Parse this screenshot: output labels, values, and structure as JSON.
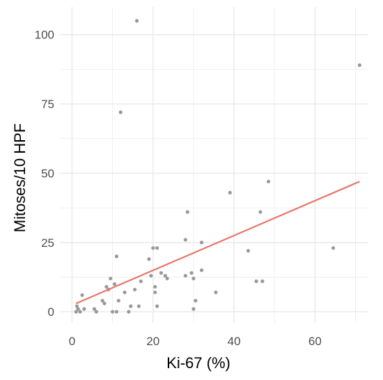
{
  "chart_data": {
    "type": "scatter",
    "xlabel": "Ki-67 (%)",
    "ylabel": "Mitoses/10 HPF",
    "xlim": [
      -3,
      73
    ],
    "ylim": [
      -4,
      110
    ],
    "x_ticks": [
      0,
      20,
      40,
      60
    ],
    "y_ticks": [
      0,
      25,
      50,
      75,
      100
    ],
    "x_tick_labels": [
      "0",
      "20",
      "40",
      "60"
    ],
    "y_tick_labels": [
      "0",
      "25",
      "50",
      "75",
      "100"
    ],
    "grid": true,
    "point_color": "#999999",
    "trend_color": "#e8756b",
    "grid_color": "#ebebeb",
    "points": [
      {
        "x": 1,
        "y": 0
      },
      {
        "x": 1.2,
        "y": 2
      },
      {
        "x": 1.5,
        "y": 1
      },
      {
        "x": 2,
        "y": 0
      },
      {
        "x": 2.5,
        "y": 6
      },
      {
        "x": 3,
        "y": 1
      },
      {
        "x": 5.5,
        "y": 1
      },
      {
        "x": 6,
        "y": 0
      },
      {
        "x": 7.5,
        "y": 4
      },
      {
        "x": 8,
        "y": 3
      },
      {
        "x": 8.5,
        "y": 9
      },
      {
        "x": 9,
        "y": 8
      },
      {
        "x": 9.5,
        "y": 12
      },
      {
        "x": 10,
        "y": 0
      },
      {
        "x": 10.5,
        "y": 10
      },
      {
        "x": 11,
        "y": 20
      },
      {
        "x": 11,
        "y": 0
      },
      {
        "x": 11.5,
        "y": 4
      },
      {
        "x": 12,
        "y": 72
      },
      {
        "x": 13,
        "y": 7
      },
      {
        "x": 14,
        "y": 0
      },
      {
        "x": 14.5,
        "y": 2
      },
      {
        "x": 15.5,
        "y": 8
      },
      {
        "x": 16,
        "y": 105
      },
      {
        "x": 16.5,
        "y": 2
      },
      {
        "x": 17,
        "y": 11
      },
      {
        "x": 19,
        "y": 19
      },
      {
        "x": 19.5,
        "y": 13
      },
      {
        "x": 20,
        "y": 23
      },
      {
        "x": 20.5,
        "y": 9
      },
      {
        "x": 20.5,
        "y": 7
      },
      {
        "x": 21,
        "y": 2
      },
      {
        "x": 21,
        "y": 23
      },
      {
        "x": 22,
        "y": 14
      },
      {
        "x": 23,
        "y": 13
      },
      {
        "x": 23.5,
        "y": 12
      },
      {
        "x": 28,
        "y": 26
      },
      {
        "x": 28,
        "y": 13
      },
      {
        "x": 28.5,
        "y": 36
      },
      {
        "x": 29.5,
        "y": 14
      },
      {
        "x": 30,
        "y": 1
      },
      {
        "x": 30.5,
        "y": 4
      },
      {
        "x": 30,
        "y": 12
      },
      {
        "x": 32,
        "y": 25
      },
      {
        "x": 32,
        "y": 15
      },
      {
        "x": 35.5,
        "y": 7
      },
      {
        "x": 39,
        "y": 43
      },
      {
        "x": 43.5,
        "y": 22
      },
      {
        "x": 45.5,
        "y": 11
      },
      {
        "x": 46.5,
        "y": 36
      },
      {
        "x": 47,
        "y": 11
      },
      {
        "x": 48.5,
        "y": 47
      },
      {
        "x": 64.5,
        "y": 23
      },
      {
        "x": 71,
        "y": 89
      }
    ],
    "trend_line": {
      "x": [
        1,
        71
      ],
      "y": [
        3,
        47
      ]
    }
  }
}
